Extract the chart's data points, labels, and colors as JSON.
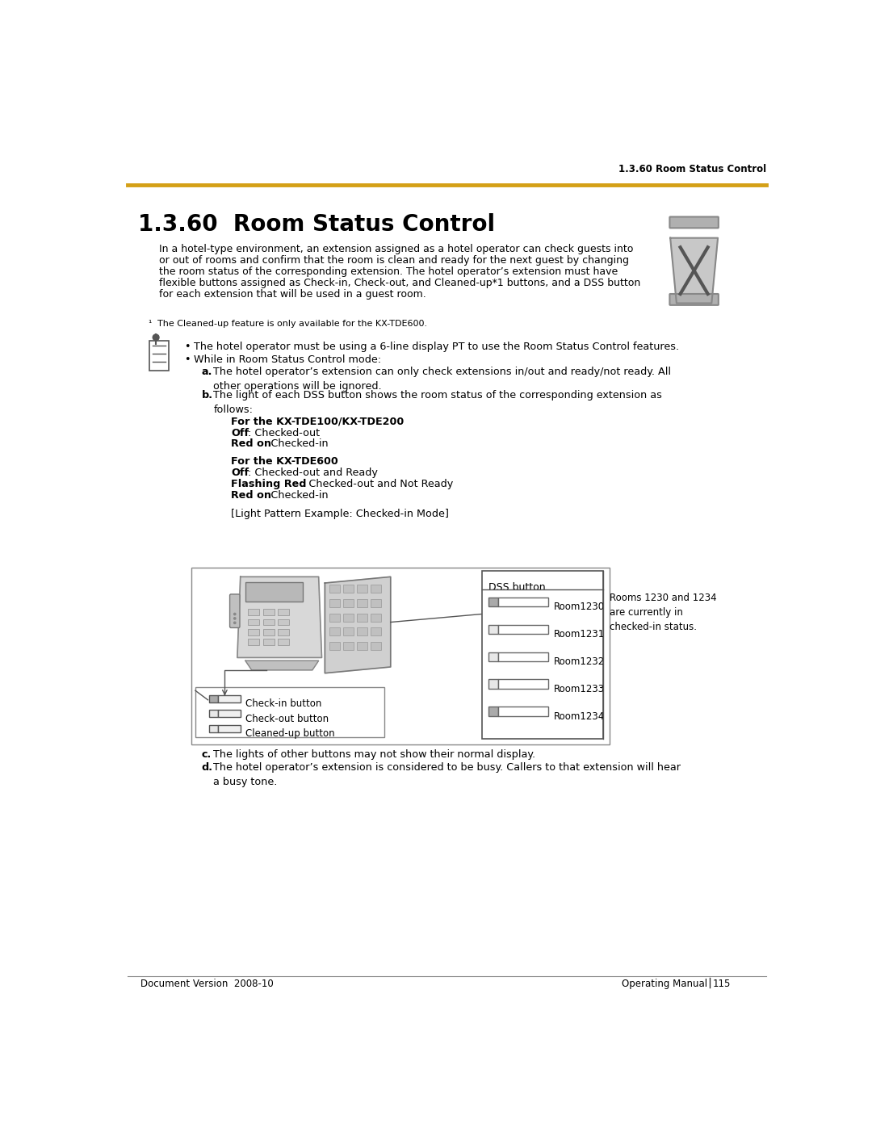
{
  "page_title": "1.3.60  Room Status Control",
  "header_text": "1.3.60 Room Status Control",
  "gold_color": "#D4A017",
  "body_text_line1": "In a hotel-type environment, an extension assigned as a hotel operator can check guests into",
  "body_text_line2": "or out of rooms and confirm that the room is clean and ready for the next guest by changing",
  "body_text_line3": "the room status of the corresponding extension. The hotel operator’s extension must have",
  "body_text_line4": "flexible buttons assigned as Check-in, Check-out, and Cleaned-up*1 buttons, and a DSS button",
  "body_text_line5": "for each extension that will be used in a guest room.",
  "footnote": "*1    The Cleaned-up feature is only available for the KX-TDE600.",
  "bullet1": "The hotel operator must be using a 6-line display PT to use the Room Status Control features.",
  "bullet2": "While in Room Status Control mode:",
  "sub_a_text": "The hotel operator’s extension can only check extensions in/out and ready/not ready. All\nother operations will be ignored.",
  "sub_b_text": "The light of each DSS button shows the room status of the corresponding extension as\nfollows:",
  "for_tde100_header": "For the KX-TDE100/KX-TDE200",
  "for_tde600_header": "For the KX-TDE600",
  "light_pattern": "[Light Pattern Example: Checked-in Mode]",
  "dss_label": "DSS button",
  "dss_rooms": [
    "Room1230",
    "Room1231",
    "Room1232",
    "Room1233",
    "Room1234"
  ],
  "dss_note": "Rooms 1230 and 1234\nare currently in\nchecked-in status.",
  "checkin_label": "Check-in button",
  "checkout_label": "Check-out button",
  "cleanedup_label": "Cleaned-up button",
  "sub_c": "The lights of other buttons may not show their normal display.",
  "sub_d": "The hotel operator’s extension is considered to be busy. Callers to that extension will hear\na busy tone.",
  "footer_left": "Document Version  2008-10",
  "footer_right": "Operating Manual",
  "footer_page": "115",
  "bg_color": "#ffffff",
  "text_color": "#000000",
  "gray_color": "#aaaaaa",
  "light_gray": "#cccccc",
  "dark_gray": "#888888"
}
